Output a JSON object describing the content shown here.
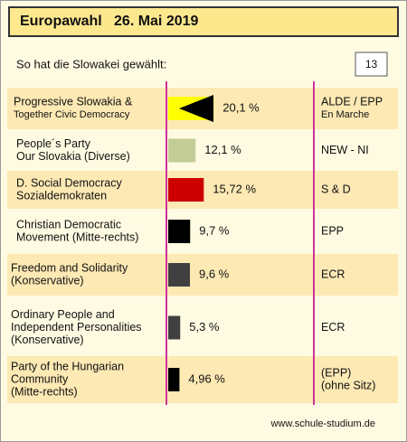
{
  "chart_data": {
    "type": "bar",
    "title": "Europawahl   26. Mai 2019",
    "subtitle": "So hat die Slowakei gewählt:",
    "seats": "13",
    "source": "www.schule-studium.de",
    "categories": [
      [
        "Progressive Slowakia  &",
        "Together Civic Democracy"
      ],
      [
        "People´s Party",
        "Our Slovakia  (Diverse)"
      ],
      [
        "D. Social Democracy",
        "Sozialdemokraten"
      ],
      [
        "Christian Democratic",
        "Movement (Mitte-rechts)"
      ],
      [
        "Freedom and Solidarity",
        "(Konservative)"
      ],
      [
        "Ordinary People and",
        "Independent Personalities",
        "(Konservative)"
      ],
      [
        "Party of the Hungarian",
        "Community",
        "(Mitte-rechts)"
      ]
    ],
    "values": [
      20.1,
      12.1,
      15.72,
      9.7,
      9.6,
      5.3,
      4.96
    ],
    "value_labels": [
      "20,1 %",
      "12,1 %",
      "15,72 %",
      "9,7 %",
      "9,6 %",
      "5,3 %",
      "4,96 %"
    ],
    "colors": [
      "#ffff00",
      "#c3cc96",
      "#cc0000",
      "#000000",
      "#404040",
      "#404040",
      "#000000"
    ],
    "groups": [
      [
        "ALDE / EPP",
        "En Marche"
      ],
      [
        "NEW - NI"
      ],
      [
        "S & D"
      ],
      [
        "EPP"
      ],
      [
        "ECR"
      ],
      [
        "ECR"
      ],
      [
        " (EPP)",
        "(ohne Sitz)"
      ]
    ]
  }
}
